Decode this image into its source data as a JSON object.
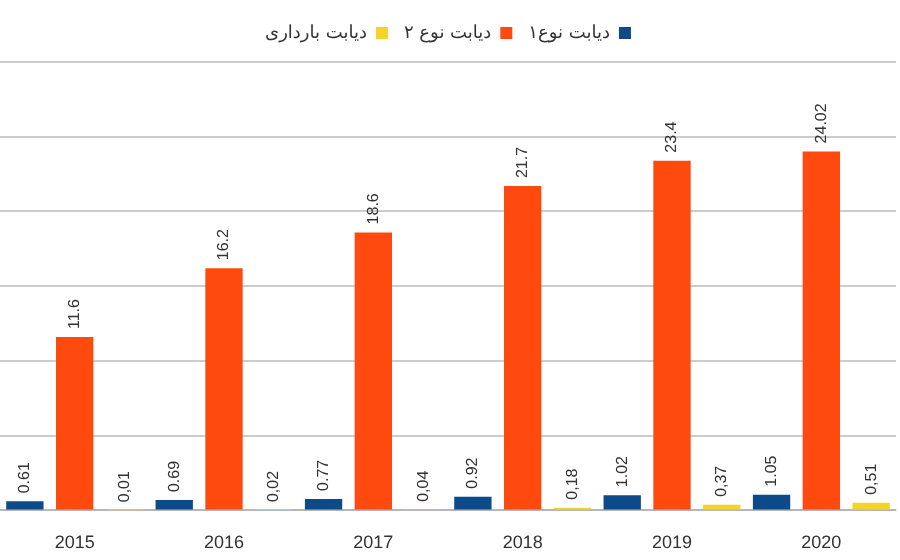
{
  "chart_data": {
    "type": "bar",
    "categories": [
      "2015",
      "2016",
      "2017",
      "2018",
      "2019",
      "2020"
    ],
    "series": [
      {
        "name": "دیابت نوع۱",
        "color": "#0d4a8a",
        "values": [
          0.61,
          0.69,
          0.77,
          0.92,
          1.02,
          1.05
        ],
        "value_labels": [
          "0.61",
          "0.69",
          "0.77",
          "0.92",
          "1.02",
          "1.05"
        ]
      },
      {
        "name": "دیابت نوع ۲",
        "color": "#ff4a0f",
        "values": [
          11.6,
          16.2,
          18.6,
          21.7,
          23.4,
          24.02
        ],
        "value_labels": [
          "11.6",
          "16.2",
          "18.6",
          "21.7",
          "23.4",
          "24.02"
        ]
      },
      {
        "name": "دیابت بارداری",
        "color": "#f5d327",
        "values": [
          0.01,
          0.02,
          0.04,
          0.18,
          0.37,
          0.51
        ],
        "value_labels": [
          "0,01",
          "0,02",
          "0,04",
          "0,18",
          "0,37",
          "0,51"
        ]
      }
    ],
    "ylim": [
      0,
      30
    ],
    "yticks": [
      {
        "value": 0,
        "label": null
      },
      {
        "value": 5,
        "label": null
      },
      {
        "value": 10,
        "label": null
      },
      {
        "value": 15,
        "label": null
      },
      {
        "value": 20,
        "label": null
      },
      {
        "value": 25,
        "label": null
      },
      {
        "value": 30,
        "label": null
      }
    ],
    "tick_labels": "x",
    "grid": "y",
    "legend": "top"
  }
}
